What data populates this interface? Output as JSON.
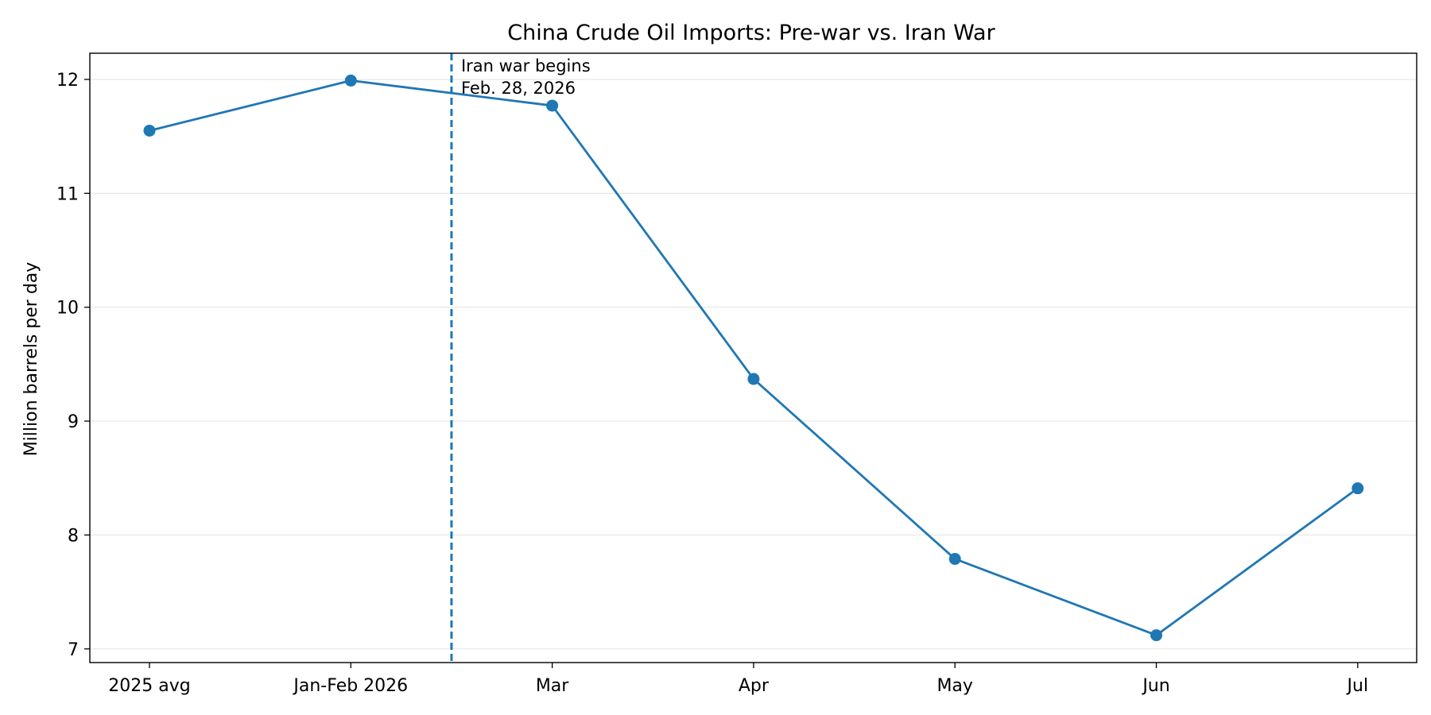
{
  "chart_data": {
    "type": "line",
    "title": "China Crude Oil Imports: Pre-war vs. Iran War",
    "xlabel": "",
    "ylabel": "Million barrels per day",
    "categories": [
      "2025 avg",
      "Jan-Feb 2026",
      "Mar",
      "Apr",
      "May",
      "Jun",
      "Jul"
    ],
    "series": [
      {
        "values": [
          11.55,
          11.99,
          11.77,
          9.37,
          7.79,
          7.12,
          8.41
        ]
      }
    ],
    "ylim": [
      6.88,
      12.23
    ],
    "yticks": [
      7,
      8,
      9,
      10,
      11,
      12
    ],
    "grid": "horizontal",
    "colors": {
      "line": "#1f77b4",
      "grid": "#e6e6e6"
    },
    "event": {
      "x_position": 1.5,
      "label_line1": "Iran war begins",
      "label_line2": "Feb. 28, 2026"
    }
  }
}
